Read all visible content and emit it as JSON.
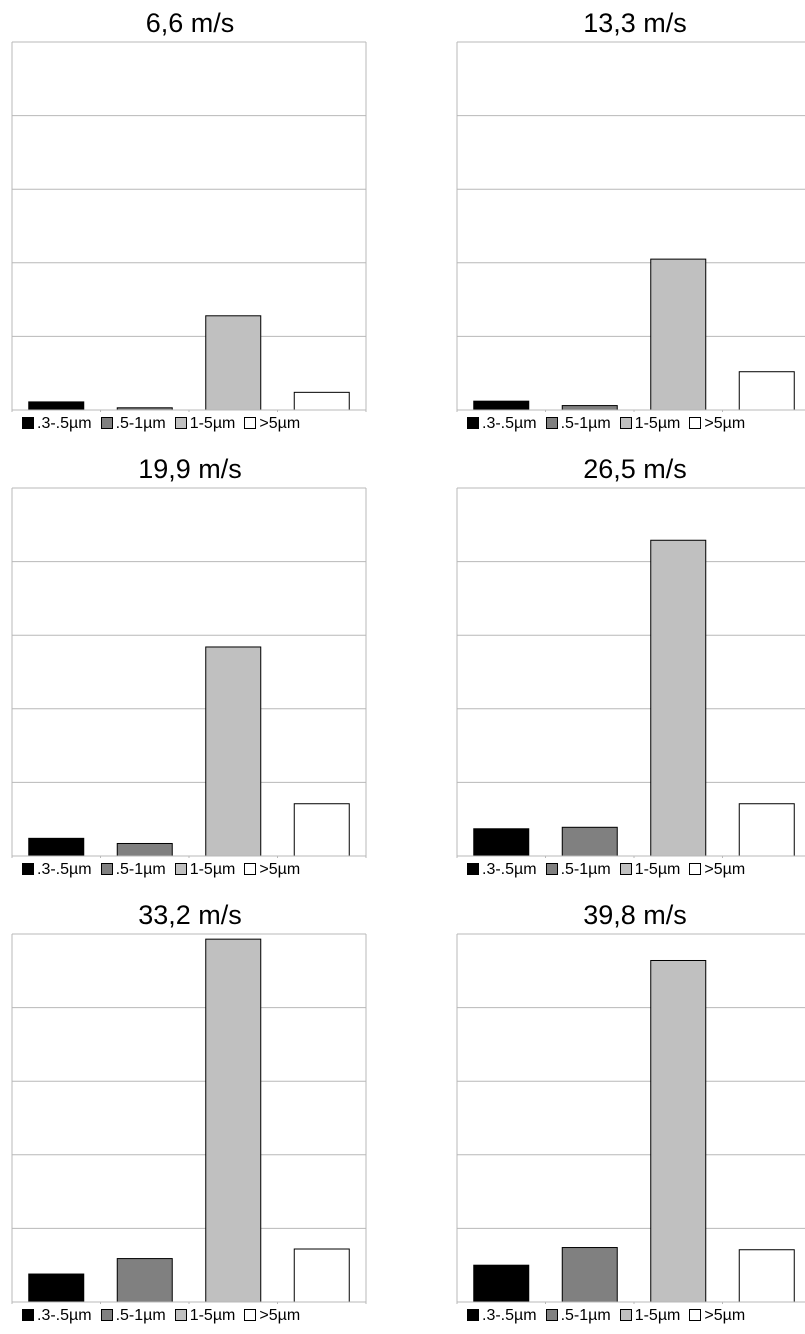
{
  "legend": {
    "items": [
      {
        "label": ".3-.5µm",
        "color": "#000000"
      },
      {
        "label": ".5-1µm",
        "color": "#808080"
      },
      {
        "label": "1-5µm",
        "color": "#c0c0c0"
      },
      {
        "label": ">5µm",
        "color": "#ffffff"
      }
    ]
  },
  "chart_data": [
    {
      "type": "bar",
      "title": "6,6 m/s",
      "categories": [
        ".3-.5µm",
        ".5-1µm",
        "1-5µm",
        ">5µm"
      ],
      "values": [
        0.11,
        0.03,
        1.28,
        0.24
      ],
      "ylim": [
        0,
        5
      ],
      "grid": true,
      "legend": "bottom"
    },
    {
      "type": "bar",
      "title": "13,3 m/s",
      "categories": [
        ".3-.5µm",
        ".5-1µm",
        "1-5µm",
        ">5µm"
      ],
      "values": [
        0.12,
        0.06,
        2.05,
        0.52
      ],
      "ylim": [
        0,
        5
      ],
      "grid": true,
      "legend": "bottom"
    },
    {
      "type": "bar",
      "title": "19,9 m/s",
      "categories": [
        ".3-.5µm",
        ".5-1µm",
        "1-5µm",
        ">5µm"
      ],
      "values": [
        0.24,
        0.17,
        2.84,
        0.71
      ],
      "ylim": [
        0,
        5
      ],
      "grid": true,
      "legend": "bottom"
    },
    {
      "type": "bar",
      "title": "26,5 m/s",
      "categories": [
        ".3-.5µm",
        ".5-1µm",
        "1-5µm",
        ">5µm"
      ],
      "values": [
        0.37,
        0.39,
        4.29,
        0.71
      ],
      "ylim": [
        0,
        5
      ],
      "grid": true,
      "legend": "bottom"
    },
    {
      "type": "bar",
      "title": "33,2 m/s",
      "categories": [
        ".3-.5µm",
        ".5-1µm",
        "1-5µm",
        ">5µm"
      ],
      "values": [
        0.38,
        0.59,
        4.93,
        0.72
      ],
      "ylim": [
        0,
        5
      ],
      "grid": true,
      "legend": "bottom"
    },
    {
      "type": "bar",
      "title": "39,8 m/s",
      "categories": [
        ".3-.5µm",
        ".5-1µm",
        "1-5µm",
        ">5µm"
      ],
      "values": [
        0.5,
        0.74,
        4.64,
        0.71
      ],
      "ylim": [
        0,
        5
      ],
      "grid": true,
      "legend": "bottom"
    }
  ]
}
